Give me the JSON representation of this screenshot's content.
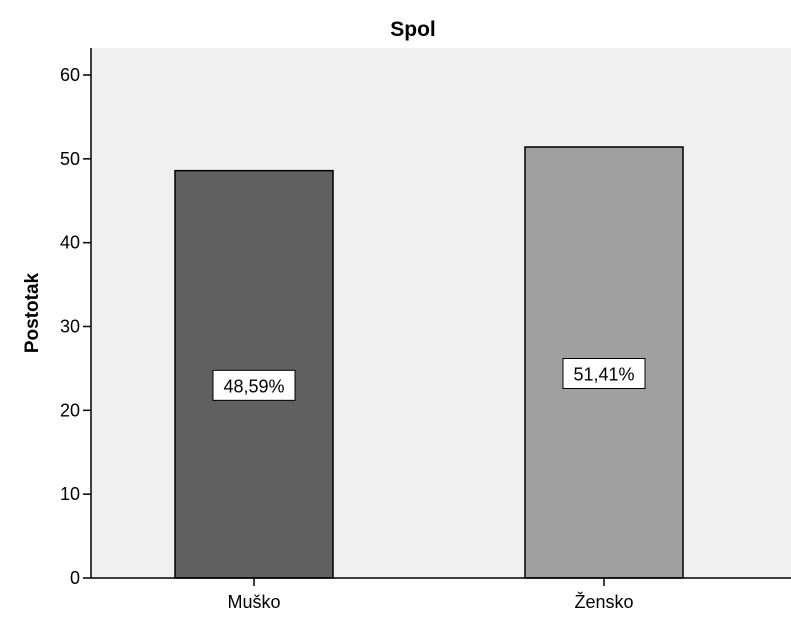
{
  "chart_data": {
    "type": "bar",
    "title": "Spol",
    "xlabel": "",
    "ylabel": "Postotak",
    "categories": [
      "Muško",
      "Žensko"
    ],
    "values": [
      48.59,
      51.41
    ],
    "data_labels": [
      "48,59%",
      "51,41%"
    ],
    "ylim": [
      0,
      60
    ],
    "yticks": [
      0,
      10,
      20,
      30,
      40,
      50,
      60
    ],
    "ytick_labels": [
      "0",
      "10",
      "20",
      "30",
      "40",
      "50",
      "60"
    ],
    "grid": false,
    "colors": {
      "plot_background": "#f0f0f0",
      "bars": [
        "#606060",
        "#a0a0a0"
      ],
      "axis": "#000000"
    }
  }
}
